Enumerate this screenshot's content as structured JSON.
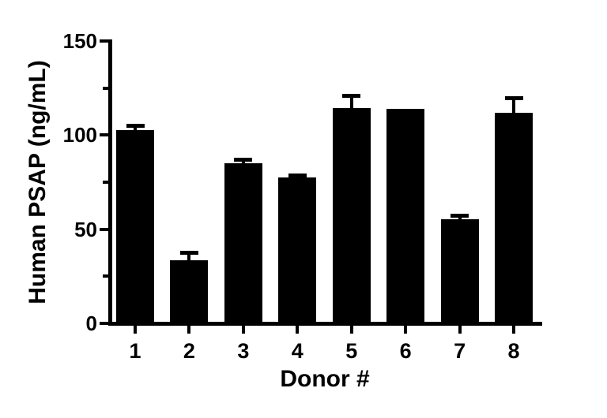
{
  "figure": {
    "background_color": "#ffffff",
    "foreground_color": "#000000"
  },
  "chart_data": {
    "type": "bar",
    "title": "",
    "xlabel": "Donor #",
    "ylabel": "Human PSAP (ng/mL)",
    "categories": [
      "1",
      "2",
      "3",
      "4",
      "5",
      "6",
      "7",
      "8"
    ],
    "series": [
      {
        "name": "Human PSAP (ng/mL)",
        "values": [
          102.5,
          33.5,
          85,
          77.5,
          114.5,
          114,
          55.5,
          112
        ],
        "errors_plus": [
          2.5,
          4,
          2,
          1,
          6.5,
          0,
          1.5,
          7.5
        ]
      }
    ],
    "error_bar_style": "upper-with-cap",
    "ylim": [
      0,
      150
    ],
    "y_major_ticks": [
      0,
      50,
      100,
      150
    ],
    "y_minor_ticks": [
      25,
      75,
      125
    ],
    "bar_color": "#000000",
    "axis_color": "#000000",
    "grid": false,
    "legend_position": "none"
  }
}
